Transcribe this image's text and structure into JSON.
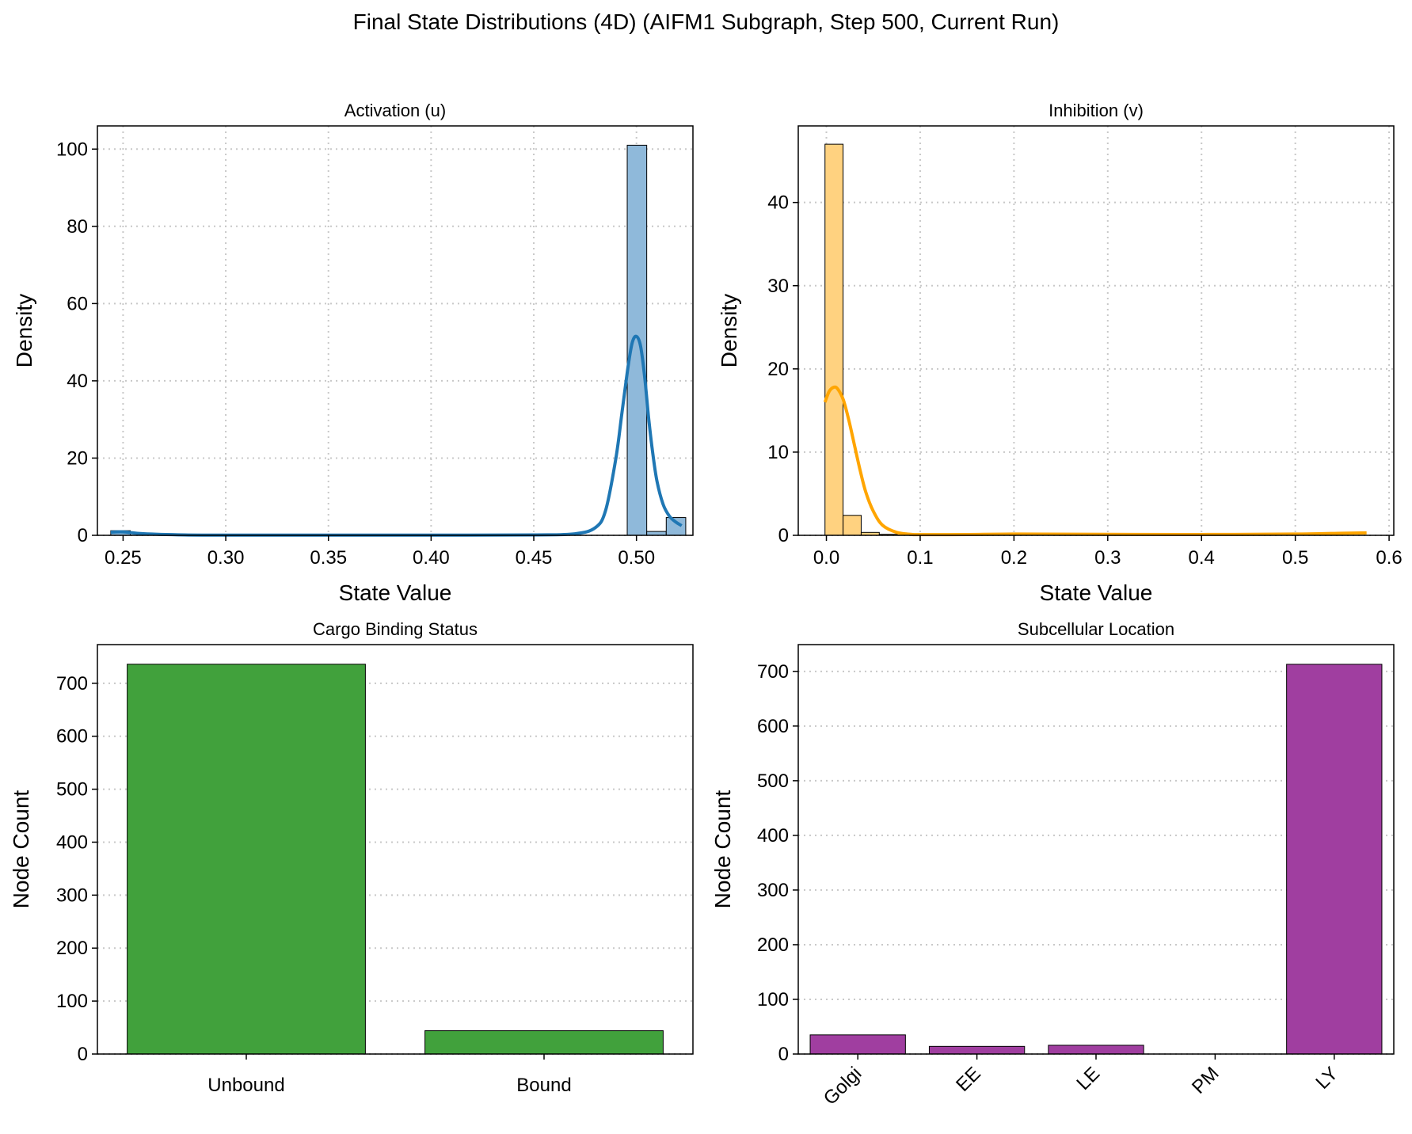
{
  "title": "Final State Distributions (4D) (AIFM1 Subgraph, Step 500, Current Run)",
  "chart_data": [
    {
      "id": "activation",
      "type": "histogram",
      "title": "Activation (u)",
      "xlabel": "State Value",
      "ylabel": "Density",
      "xlim": [
        0.2375,
        0.5275
      ],
      "ylim": [
        0,
        106
      ],
      "xticks": [
        0.25,
        0.3,
        0.35,
        0.4,
        0.45,
        0.5
      ],
      "xtick_labels": [
        "0.25",
        "0.30",
        "0.35",
        "0.40",
        "0.45",
        "0.50"
      ],
      "yticks": [
        0,
        20,
        40,
        60,
        80,
        100
      ],
      "ytick_labels": [
        "0",
        "20",
        "40",
        "60",
        "80",
        "100"
      ],
      "grid": true,
      "color": "#1f77b4",
      "bar_fill": "#8fb9da",
      "bins": [
        {
          "x0": 0.244,
          "x1": 0.2535,
          "value": 1.2
        },
        {
          "x0": 0.4955,
          "x1": 0.505,
          "value": 101
        },
        {
          "x0": 0.505,
          "x1": 0.5145,
          "value": 1.0
        },
        {
          "x0": 0.5145,
          "x1": 0.524,
          "value": 4.6
        }
      ],
      "kde": {
        "x": [
          0.244,
          0.25,
          0.26,
          0.28,
          0.3,
          0.35,
          0.4,
          0.45,
          0.47,
          0.48,
          0.485,
          0.49,
          0.493,
          0.496,
          0.498,
          0.5,
          0.502,
          0.504,
          0.506,
          0.508,
          0.51,
          0.513,
          0.516,
          0.519,
          0.522
        ],
        "y": [
          0.8,
          0.9,
          0.4,
          0.1,
          0.05,
          0.05,
          0.05,
          0.1,
          0.4,
          2.0,
          6.5,
          20,
          32,
          44,
          50,
          51.5,
          49,
          41,
          30,
          21,
          14,
          8,
          5,
          3.5,
          2.5
        ]
      }
    },
    {
      "id": "inhibition",
      "type": "histogram",
      "title": "Inhibition (v)",
      "xlabel": "State Value",
      "ylabel": "Density",
      "xlim": [
        -0.03,
        0.605
      ],
      "ylim": [
        0,
        49.2
      ],
      "xticks": [
        0.0,
        0.1,
        0.2,
        0.3,
        0.4,
        0.5,
        0.6
      ],
      "xtick_labels": [
        "0.0",
        "0.1",
        "0.2",
        "0.3",
        "0.4",
        "0.5",
        "0.6"
      ],
      "yticks": [
        0,
        10,
        20,
        30,
        40
      ],
      "ytick_labels": [
        "0",
        "10",
        "20",
        "30",
        "40"
      ],
      "grid": true,
      "color": "#ffa500",
      "bar_fill": "#ffd280",
      "bins": [
        {
          "x0": -0.0015,
          "x1": 0.0178,
          "value": 47
        },
        {
          "x0": 0.0178,
          "x1": 0.0371,
          "value": 2.4
        },
        {
          "x0": 0.0371,
          "x1": 0.0564,
          "value": 0.35
        },
        {
          "x0": 0.0564,
          "x1": 0.0757,
          "value": 0.12
        }
      ],
      "kde": {
        "x": [
          -0.0015,
          0.003,
          0.008,
          0.012,
          0.018,
          0.024,
          0.03,
          0.036,
          0.042,
          0.05,
          0.06,
          0.075,
          0.09,
          0.1,
          0.15,
          0.2,
          0.3,
          0.4,
          0.5,
          0.55,
          0.576
        ],
        "y": [
          16,
          17.3,
          17.8,
          17.6,
          16.3,
          13.8,
          10.8,
          7.8,
          5.2,
          2.9,
          1.2,
          0.35,
          0.12,
          0.08,
          0.1,
          0.15,
          0.12,
          0.1,
          0.15,
          0.25,
          0.3
        ]
      }
    },
    {
      "id": "cargo",
      "type": "bar",
      "title": "Cargo Binding Status",
      "xlabel": "",
      "ylabel": "Node Count",
      "categories": [
        "Unbound",
        "Bound"
      ],
      "values": [
        736,
        44
      ],
      "ylim": [
        0,
        773
      ],
      "yticks": [
        0,
        100,
        200,
        300,
        400,
        500,
        600,
        700
      ],
      "ytick_labels": [
        "0",
        "100",
        "200",
        "300",
        "400",
        "500",
        "600",
        "700"
      ],
      "grid": true,
      "color": "#41a13c"
    },
    {
      "id": "location",
      "type": "bar",
      "title": "Subcellular Location",
      "xlabel": "",
      "ylabel": "Node Count",
      "categories": [
        "Golgi",
        "EE",
        "LE",
        "PM",
        "LY"
      ],
      "values": [
        35,
        14,
        16,
        0,
        713
      ],
      "ylim": [
        0,
        749
      ],
      "yticks": [
        0,
        100,
        200,
        300,
        400,
        500,
        600,
        700
      ],
      "ytick_labels": [
        "0",
        "100",
        "200",
        "300",
        "400",
        "500",
        "600",
        "700"
      ],
      "grid": true,
      "color": "#a03ea0"
    }
  ]
}
